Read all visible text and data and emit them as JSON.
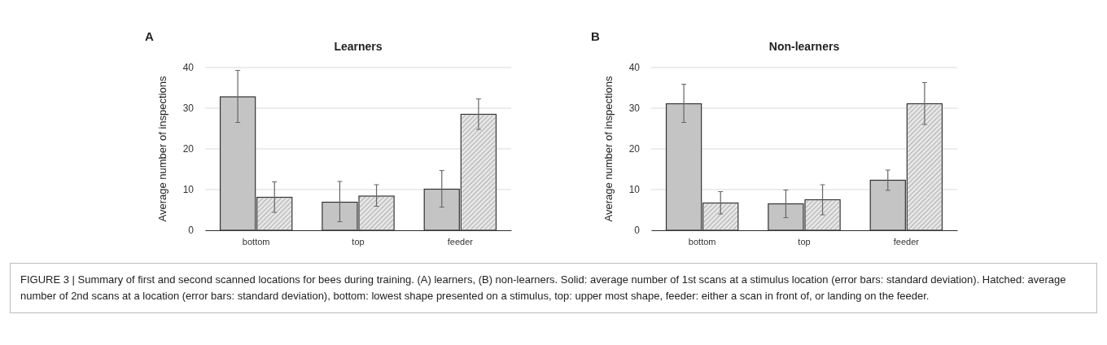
{
  "chart_data": [
    {
      "type": "bar",
      "title": "Learners",
      "ylabel": "Average number of inspections",
      "categories": [
        "bottom",
        "top",
        "feeder"
      ],
      "series": [
        {
          "color": "#c4c4c4",
          "values": [
            32.8,
            6.9,
            10.1
          ],
          "errors": [
            [
              26.5,
              39.3
            ],
            [
              2.1,
              12
            ],
            [
              5.7,
              14.7
            ]
          ]
        },
        {
          "color": "#e6e6e6",
          "values": [
            8.1,
            8.4,
            28.5
          ],
          "errors": [
            [
              4.4,
              11.9
            ],
            [
              5.9,
              11.2
            ],
            [
              24.8,
              32.3
            ]
          ]
        }
      ],
      "ylim": [
        0,
        40
      ],
      "yticks": [
        0,
        10,
        20,
        30,
        40
      ],
      "grid": "y",
      "annotations": [
        "A"
      ]
    },
    {
      "type": "bar",
      "title": "Non-learners",
      "ylabel": "Average number of inspections",
      "categories": [
        "bottom",
        "top",
        "feeder"
      ],
      "series": [
        {
          "color": "#c4c4c4",
          "values": [
            31.1,
            6.5,
            12.3
          ],
          "errors": [
            [
              26.5,
              35.9
            ],
            [
              3.1,
              9.9
            ],
            [
              9.8,
              14.8
            ]
          ]
        },
        {
          "color": "#e6e6e6",
          "values": [
            6.7,
            7.5,
            31.1
          ],
          "errors": [
            [
              4,
              9.5
            ],
            [
              3.8,
              11.2
            ],
            [
              26,
              36.3
            ]
          ]
        }
      ],
      "ylim": [
        0,
        40
      ],
      "yticks": [
        0,
        10,
        20,
        30,
        40
      ],
      "grid": "y",
      "annotations": [
        "B",
        "FIGURE 3 | Summary of first and second scanned locations for bees during training. (A) learners, (B) non-learners. Solid: average number of 1st scans at a stimulus location (error bars: standard deviation). Hatched: average number of 2nd scans at a location (error bars: standard deviation), bottom: lowest shape presented on a stimulus, top: upper most shape, feeder: either a scan in front of, or landing on the feeder."
      ]
    }
  ]
}
